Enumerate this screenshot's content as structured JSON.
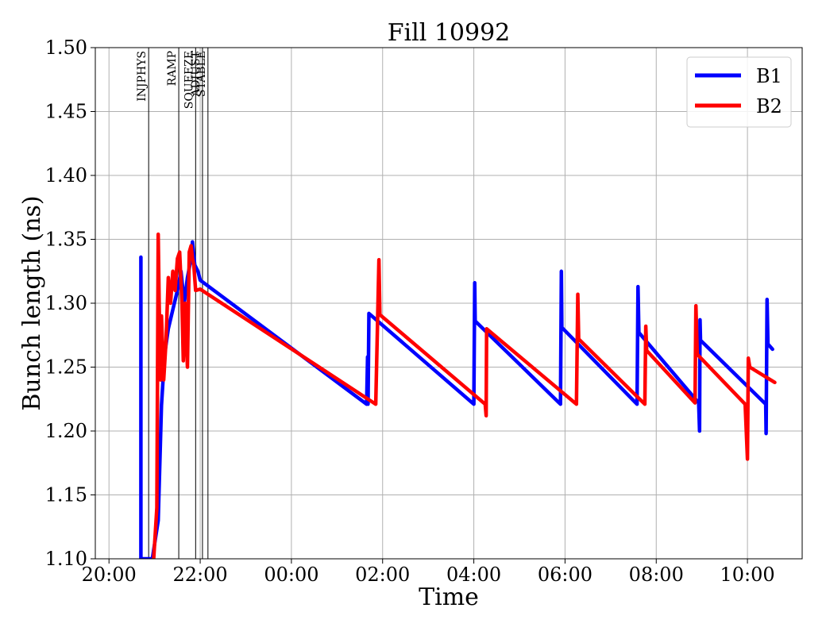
{
  "chart_data": {
    "type": "line",
    "title": "Fill 10992",
    "xlabel": "Time",
    "ylabel": "Bunch length (ns)",
    "xlim": [
      -0.3,
      15.2
    ],
    "ylim": [
      1.1,
      1.5
    ],
    "grid": true,
    "legend_position": "top-right",
    "x_ticks": [
      {
        "x": 0,
        "label": "20:00"
      },
      {
        "x": 2,
        "label": "22:00"
      },
      {
        "x": 4,
        "label": "00:00"
      },
      {
        "x": 6,
        "label": "02:00"
      },
      {
        "x": 8,
        "label": "04:00"
      },
      {
        "x": 10,
        "label": "06:00"
      },
      {
        "x": 12,
        "label": "08:00"
      },
      {
        "x": 14,
        "label": "10:00"
      }
    ],
    "y_ticks": [
      "1.10",
      "1.15",
      "1.20",
      "1.25",
      "1.30",
      "1.35",
      "1.40",
      "1.45",
      "1.50"
    ],
    "phases": [
      {
        "label": "INJPHYS",
        "x": 0.87
      },
      {
        "label": "RAMP",
        "x": 1.53
      },
      {
        "label": "SQUEEZE",
        "x": 1.9
      },
      {
        "label": "ADJUST",
        "x": 2.05
      },
      {
        "label": "STABLE",
        "x": 2.17
      }
    ],
    "series": [
      {
        "name": "B1",
        "color": "#0000ff",
        "points": [
          [
            0.7,
            1.1
          ],
          [
            0.7,
            1.336
          ],
          [
            0.7,
            1.1
          ],
          [
            0.95,
            1.1
          ],
          [
            1.08,
            1.13
          ],
          [
            1.15,
            1.22
          ],
          [
            1.22,
            1.26
          ],
          [
            1.3,
            1.28
          ],
          [
            1.4,
            1.295
          ],
          [
            1.5,
            1.31
          ],
          [
            1.58,
            1.325
          ],
          [
            1.65,
            1.3
          ],
          [
            1.72,
            1.32
          ],
          [
            1.8,
            1.335
          ],
          [
            1.83,
            1.348
          ],
          [
            1.88,
            1.33
          ],
          [
            1.95,
            1.325
          ],
          [
            2.0,
            1.318
          ],
          [
            5.65,
            1.221
          ],
          [
            5.67,
            1.258
          ],
          [
            5.68,
            1.221
          ],
          [
            5.7,
            1.292
          ],
          [
            8.0,
            1.221
          ],
          [
            8.02,
            1.316
          ],
          [
            8.03,
            1.286
          ],
          [
            9.9,
            1.221
          ],
          [
            9.92,
            1.325
          ],
          [
            9.93,
            1.281
          ],
          [
            11.58,
            1.221
          ],
          [
            11.6,
            1.313
          ],
          [
            11.62,
            1.277
          ],
          [
            12.93,
            1.222
          ],
          [
            12.95,
            1.2
          ],
          [
            12.96,
            1.287
          ],
          [
            12.97,
            1.271
          ],
          [
            14.4,
            1.221
          ],
          [
            14.41,
            1.198
          ],
          [
            14.43,
            1.303
          ],
          [
            14.45,
            1.268
          ],
          [
            14.55,
            1.264
          ]
        ]
      },
      {
        "name": "B2",
        "color": "#ff0000",
        "points": [
          [
            0.98,
            1.1
          ],
          [
            1.05,
            1.14
          ],
          [
            1.08,
            1.354
          ],
          [
            1.1,
            1.3
          ],
          [
            1.13,
            1.24
          ],
          [
            1.15,
            1.29
          ],
          [
            1.2,
            1.24
          ],
          [
            1.25,
            1.27
          ],
          [
            1.3,
            1.32
          ],
          [
            1.35,
            1.3
          ],
          [
            1.4,
            1.325
          ],
          [
            1.45,
            1.31
          ],
          [
            1.5,
            1.335
          ],
          [
            1.55,
            1.34
          ],
          [
            1.6,
            1.3
          ],
          [
            1.63,
            1.255
          ],
          [
            1.67,
            1.3
          ],
          [
            1.72,
            1.25
          ],
          [
            1.76,
            1.34
          ],
          [
            1.8,
            1.345
          ],
          [
            1.83,
            1.335
          ],
          [
            1.86,
            1.33
          ],
          [
            1.9,
            1.31
          ],
          [
            2.0,
            1.311
          ],
          [
            5.85,
            1.221
          ],
          [
            5.92,
            1.334
          ],
          [
            5.94,
            1.291
          ],
          [
            8.25,
            1.221
          ],
          [
            8.27,
            1.212
          ],
          [
            8.28,
            1.28
          ],
          [
            10.25,
            1.221
          ],
          [
            10.28,
            1.307
          ],
          [
            10.3,
            1.272
          ],
          [
            11.75,
            1.221
          ],
          [
            11.77,
            1.282
          ],
          [
            11.79,
            1.263
          ],
          [
            12.85,
            1.222
          ],
          [
            12.87,
            1.298
          ],
          [
            12.9,
            1.26
          ],
          [
            13.95,
            1.221
          ],
          [
            14.0,
            1.178
          ],
          [
            14.02,
            1.257
          ],
          [
            14.05,
            1.25
          ],
          [
            14.6,
            1.238
          ]
        ]
      }
    ]
  }
}
